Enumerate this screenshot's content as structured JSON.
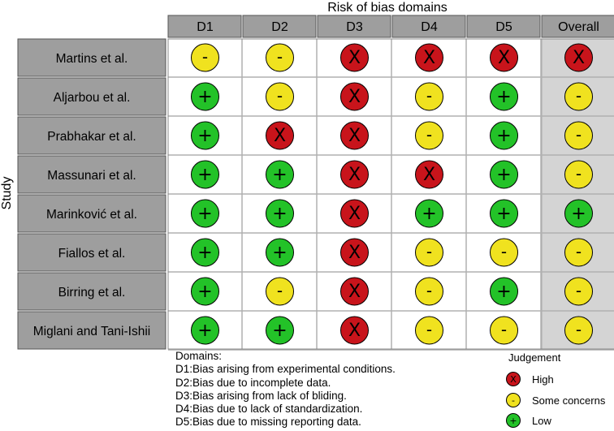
{
  "chart_data": {
    "type": "table",
    "title": "Risk of bias domains",
    "ylabel": "Study",
    "columns": [
      "D1",
      "D2",
      "D3",
      "D4",
      "D5",
      "Overall"
    ],
    "rows": [
      {
        "study": "Martins et al.",
        "judgements": [
          "some",
          "some",
          "high",
          "high",
          "high",
          "high"
        ]
      },
      {
        "study": "Aljarbou et al.",
        "judgements": [
          "low",
          "some",
          "high",
          "some",
          "low",
          "some"
        ]
      },
      {
        "study": "Prabhakar et al.",
        "judgements": [
          "low",
          "high",
          "high",
          "some",
          "low",
          "some"
        ]
      },
      {
        "study": "Massunari et al.",
        "judgements": [
          "low",
          "low",
          "high",
          "high",
          "low",
          "some"
        ]
      },
      {
        "study": "Marinković et al.",
        "judgements": [
          "low",
          "low",
          "high",
          "low",
          "low",
          "low"
        ]
      },
      {
        "study": "Fiallos et al.",
        "judgements": [
          "low",
          "low",
          "high",
          "some",
          "some",
          "some"
        ]
      },
      {
        "study": "Birring et al.",
        "judgements": [
          "low",
          "some",
          "high",
          "some",
          "low",
          "some"
        ]
      },
      {
        "study": "Miglani and Tani-Ishii",
        "judgements": [
          "low",
          "low",
          "high",
          "some",
          "some",
          "some"
        ]
      }
    ],
    "symbols": {
      "high": "X",
      "some": "-",
      "low": "+"
    },
    "colors": {
      "high": "#c8141b",
      "some": "#f0e21f",
      "low": "#23c228"
    }
  },
  "domains": {
    "heading": "Domains:",
    "items": [
      {
        "key": "D1:",
        "text": "Bias arising from experimental conditions."
      },
      {
        "key": "D2:",
        "text": "Bias due to incomplete data."
      },
      {
        "key": "D3:",
        "text": "Bias arising from lack of bliding."
      },
      {
        "key": "D4:",
        "text": "Bias due to lack of standardization."
      },
      {
        "key": "D5:",
        "text": "Bias due to missing reporting data."
      }
    ]
  },
  "judgement_legend": {
    "title": "Judgement",
    "items": [
      {
        "symbol": "X",
        "label": "High",
        "color": "#c8141b"
      },
      {
        "symbol": "-",
        "label": "Some concerns",
        "color": "#f0e21f"
      },
      {
        "symbol": "+",
        "label": "Low",
        "color": "#23c228"
      }
    ]
  }
}
